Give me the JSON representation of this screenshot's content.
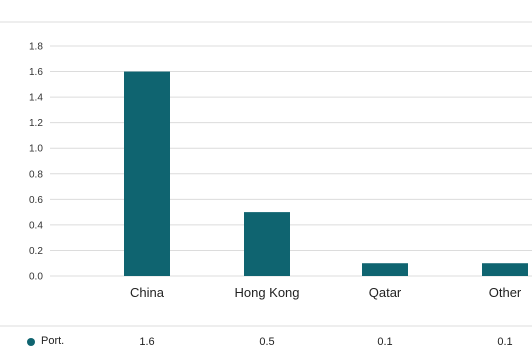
{
  "chart_data": {
    "type": "bar",
    "categories": [
      "China",
      "Hong Kong",
      "Qatar",
      "Other"
    ],
    "series": [
      {
        "name": "Port.",
        "values": [
          1.6,
          0.5,
          0.1,
          0.1
        ],
        "color": "#0f6470"
      }
    ],
    "ylim": [
      0,
      1.8
    ],
    "yticks": [
      "0.0",
      "0.2",
      "0.4",
      "0.6",
      "0.8",
      "1.0",
      "1.2",
      "1.4",
      "1.6",
      "1.8"
    ],
    "grid": true,
    "legend_position": "bottom",
    "table_values": [
      "1.6",
      "0.5",
      "0.1",
      "0.1"
    ]
  }
}
